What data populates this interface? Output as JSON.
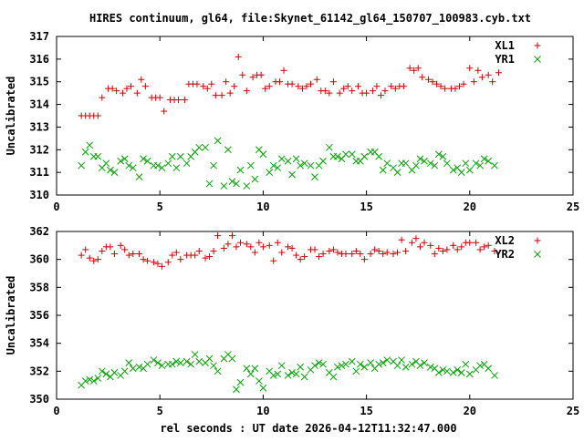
{
  "title": "HIRES continuum, gl64, file:Skynet_61142_gl64_150707_100983.cyb.txt",
  "xlabel": "rel seconds : UT date 2026-04-12T11:32:47.000",
  "chart_data": [
    {
      "type": "scatter",
      "ylabel": "Uncalibrated",
      "xlim": [
        0,
        25
      ],
      "ylim": [
        310,
        317
      ],
      "xticks": [
        0,
        5,
        10,
        15,
        20,
        25
      ],
      "yticks": [
        310,
        311,
        312,
        313,
        314,
        315,
        316,
        317
      ],
      "legend_position": "top-right",
      "series": [
        {
          "name": "XL1",
          "marker": "+",
          "color": "#cc0000",
          "x": [
            1.2,
            1.4,
            1.6,
            1.8,
            2.0,
            2.2,
            2.5,
            2.7,
            2.9,
            3.2,
            3.4,
            3.6,
            3.9,
            4.1,
            4.3,
            4.6,
            4.8,
            5.0,
            5.2,
            5.5,
            5.7,
            5.9,
            6.2,
            6.4,
            6.6,
            6.8,
            7.1,
            7.3,
            7.5,
            7.7,
            8.0,
            8.2,
            8.4,
            8.6,
            8.8,
            9.0,
            9.2,
            9.5,
            9.7,
            9.9,
            10.1,
            10.3,
            10.6,
            10.8,
            11.0,
            11.2,
            11.4,
            11.7,
            11.9,
            12.1,
            12.3,
            12.6,
            12.8,
            13.0,
            13.2,
            13.4,
            13.7,
            13.9,
            14.1,
            14.3,
            14.6,
            14.8,
            15.0,
            15.3,
            15.5,
            15.7,
            15.9,
            16.2,
            16.4,
            16.6,
            16.8,
            17.1,
            17.3,
            17.5,
            17.7,
            18.0,
            18.2,
            18.4,
            18.6,
            18.8,
            19.1,
            19.3,
            19.5,
            19.7,
            20.0,
            20.2,
            20.4,
            20.6,
            20.9,
            21.1,
            21.4
          ],
          "y": [
            313.5,
            313.5,
            313.5,
            313.5,
            313.5,
            314.3,
            314.7,
            314.7,
            314.6,
            314.5,
            314.7,
            314.8,
            314.5,
            315.1,
            314.8,
            314.3,
            314.3,
            314.3,
            313.7,
            314.2,
            314.2,
            314.2,
            314.2,
            314.9,
            314.9,
            314.9,
            314.8,
            314.7,
            314.9,
            314.4,
            314.4,
            315.0,
            314.5,
            314.8,
            316.1,
            315.3,
            314.6,
            315.2,
            315.3,
            315.3,
            314.7,
            314.8,
            315.0,
            315.0,
            315.5,
            314.9,
            314.9,
            314.8,
            314.7,
            314.8,
            314.9,
            315.1,
            314.6,
            314.6,
            314.5,
            315.0,
            314.5,
            314.7,
            314.8,
            314.6,
            314.8,
            314.5,
            314.5,
            314.6,
            314.8,
            314.4,
            314.6,
            314.8,
            314.7,
            314.8,
            314.8,
            315.6,
            315.5,
            315.6,
            315.2,
            315.1,
            315.0,
            314.9,
            314.8,
            314.7,
            314.7,
            314.7,
            314.8,
            314.9,
            315.6,
            315.0,
            315.5,
            315.2,
            315.3,
            315.0,
            315.4
          ],
          "x_draw": [
            1.2,
            1.4,
            1.6,
            1.8,
            2.0,
            2.2,
            2.4,
            2.6,
            2.8,
            3.1,
            3.3,
            3.5,
            3.7,
            4.0,
            4.2,
            4.4,
            4.7,
            4.9,
            5.1,
            5.4,
            5.6,
            5.8,
            6.0,
            6.3,
            6.5,
            6.7,
            6.9,
            7.2,
            7.4,
            7.6,
            7.8,
            8.1,
            8.3,
            8.5,
            8.7,
            8.9,
            9.2,
            9.4,
            9.6,
            9.8,
            10.0,
            10.3,
            10.5,
            10.7,
            10.9,
            11.2,
            11.4,
            11.6,
            11.8,
            12.0,
            12.3,
            12.5,
            12.7,
            12.9,
            13.2,
            13.4,
            13.6,
            13.8,
            14.0,
            14.3,
            14.5,
            14.7,
            14.9,
            15.2,
            15.4,
            15.6,
            15.8,
            16.0,
            16.3,
            16.5,
            16.7,
            16.9,
            17.2,
            17.4,
            17.6,
            17.8,
            18.1,
            18.3,
            18.5,
            18.7,
            18.9,
            19.2,
            19.4,
            19.6,
            19.8,
            20.0,
            20.3,
            20.5,
            20.7,
            20.9,
            21.2,
            21.4
          ],
          "y_draw": [
            313.5,
            313.5,
            313.5,
            313.5,
            313.5,
            314.3,
            314.7,
            314.6,
            314.5,
            314.7,
            314.8,
            314.5,
            315.1,
            314.8,
            314.3,
            314.3,
            314.3,
            313.7,
            314.2,
            314.2,
            314.2,
            314.2,
            314.9,
            314.9,
            314.8,
            314.7,
            314.9,
            314.4,
            314.4,
            315.0,
            314.5,
            314.8,
            316.1,
            315.3,
            314.6,
            315.2,
            315.3,
            315.3,
            314.7,
            314.8,
            315.0,
            315.0,
            315.5,
            314.9,
            314.9,
            314.8,
            314.7,
            314.8,
            314.9,
            315.1,
            314.6,
            314.6,
            314.5,
            315.0,
            314.5,
            314.7,
            314.8,
            314.6,
            314.8,
            314.5,
            314.5,
            314.6,
            314.8,
            314.4,
            314.6,
            314.8,
            314.7,
            314.8,
            314.8,
            315.6,
            315.5,
            315.6,
            315.2,
            315.1,
            315.0,
            314.9,
            314.8,
            314.7,
            314.7,
            314.7,
            314.8,
            314.9,
            315.6,
            315.0,
            315.5,
            315.2,
            315.3,
            315.0,
            315.4,
            315.4,
            315.4,
            315.4
          ]
        },
        {
          "name": "YR1",
          "marker": "x",
          "color": "#00a000",
          "x": [
            1.2,
            1.4,
            1.6,
            1.8,
            2.0,
            2.2,
            2.4,
            2.6,
            2.8,
            3.1,
            3.3,
            3.5,
            3.7,
            4.0,
            4.2,
            4.4,
            4.7,
            4.9,
            5.1,
            5.4,
            5.6,
            5.8,
            6.0,
            6.3,
            6.5,
            6.7,
            6.9,
            7.2,
            7.4,
            7.6,
            7.8,
            8.1,
            8.3,
            8.5,
            8.7,
            8.9,
            9.2,
            9.4,
            9.6,
            9.8,
            10.0,
            10.3,
            10.5,
            10.7,
            10.9,
            11.2,
            11.4,
            11.6,
            11.8,
            12.0,
            12.3,
            12.5,
            12.7,
            12.9,
            13.2,
            13.4,
            13.6,
            13.8,
            14.0,
            14.3,
            14.5,
            14.7,
            14.9,
            15.2,
            15.4,
            15.6,
            15.8,
            16.0,
            16.3,
            16.5,
            16.7,
            16.9,
            17.2,
            17.4,
            17.6,
            17.8,
            18.1,
            18.3,
            18.5,
            18.7,
            18.9,
            19.2,
            19.4,
            19.6,
            19.8,
            20.0,
            20.3,
            20.5,
            20.7,
            20.9,
            21.2
          ],
          "y": [
            311.3,
            311.9,
            312.2,
            311.7,
            311.7,
            311.2,
            311.4,
            311.1,
            311.0,
            311.5,
            311.6,
            311.3,
            311.2,
            310.8,
            311.6,
            311.5,
            311.3,
            311.3,
            311.2,
            311.4,
            311.7,
            311.2,
            311.7,
            311.4,
            311.7,
            311.9,
            312.1,
            312.1,
            310.5,
            311.3,
            312.4,
            310.4,
            312.0,
            310.6,
            310.5,
            311.1,
            310.4,
            311.3,
            310.7,
            312.0,
            311.8,
            311.0,
            311.3,
            311.2,
            311.6,
            311.5,
            310.9,
            311.6,
            311.3,
            311.4,
            311.3,
            310.8,
            311.3,
            311.5,
            312.1,
            311.7,
            311.7,
            311.6,
            311.8,
            311.8,
            311.5,
            311.5,
            311.7,
            311.9,
            311.9,
            311.7,
            311.1,
            311.4,
            311.2,
            311.0,
            311.4,
            311.4,
            311.1,
            311.3,
            311.6,
            311.5,
            311.4,
            311.3,
            311.8,
            311.7,
            311.4,
            311.1,
            311.2,
            311.0,
            311.4,
            311.1,
            311.4,
            311.3,
            311.6,
            311.5,
            311.3
          ]
        }
      ]
    },
    {
      "type": "scatter",
      "ylabel": "Uncalibrated",
      "xlim": [
        0,
        25
      ],
      "ylim": [
        350,
        362
      ],
      "xticks": [
        0,
        5,
        10,
        15,
        20,
        25
      ],
      "yticks": [
        350,
        352,
        354,
        356,
        358,
        360,
        362
      ],
      "legend_position": "top-right",
      "series": [
        {
          "name": "XL2",
          "marker": "+",
          "color": "#cc0000",
          "x": [
            1.2,
            1.4,
            1.6,
            1.8,
            2.0,
            2.2,
            2.4,
            2.6,
            2.8,
            3.1,
            3.3,
            3.5,
            3.7,
            4.0,
            4.2,
            4.4,
            4.7,
            4.9,
            5.1,
            5.4,
            5.6,
            5.8,
            6.0,
            6.3,
            6.5,
            6.7,
            6.9,
            7.2,
            7.4,
            7.6,
            7.8,
            8.1,
            8.3,
            8.5,
            8.7,
            8.9,
            9.2,
            9.4,
            9.6,
            9.8,
            10.0,
            10.3,
            10.5,
            10.7,
            10.9,
            11.2,
            11.4,
            11.6,
            11.8,
            12.0,
            12.3,
            12.5,
            12.7,
            12.9,
            13.2,
            13.4,
            13.6,
            13.8,
            14.0,
            14.3,
            14.5,
            14.7,
            14.9,
            15.2,
            15.4,
            15.6,
            15.8,
            16.0,
            16.3,
            16.5,
            16.7,
            16.9,
            17.2,
            17.4,
            17.6,
            17.8,
            18.1,
            18.3,
            18.5,
            18.7,
            18.9,
            19.2,
            19.4,
            19.6,
            19.8,
            20.0,
            20.3,
            20.5,
            20.7,
            20.9,
            21.2
          ],
          "y": [
            360.3,
            360.7,
            360.1,
            359.9,
            360.0,
            360.6,
            360.9,
            360.9,
            360.4,
            361.0,
            360.7,
            360.3,
            360.4,
            360.4,
            360.0,
            359.9,
            359.8,
            359.7,
            359.5,
            359.8,
            360.3,
            360.5,
            360.0,
            360.3,
            360.3,
            360.3,
            360.6,
            360.1,
            360.2,
            360.6,
            361.7,
            360.8,
            361.1,
            361.7,
            360.9,
            361.2,
            361.1,
            360.9,
            360.5,
            361.2,
            360.9,
            361.0,
            359.9,
            361.2,
            360.5,
            360.9,
            360.8,
            360.3,
            360.0,
            360.2,
            360.7,
            360.7,
            360.2,
            360.4,
            360.6,
            360.7,
            360.5,
            360.4,
            360.4,
            360.4,
            360.6,
            360.4,
            360.0,
            360.4,
            360.7,
            360.6,
            360.4,
            360.5,
            360.4,
            360.5,
            361.4,
            360.6,
            361.2,
            361.5,
            360.9,
            361.2,
            361.0,
            360.4,
            360.8,
            360.6,
            360.7,
            361.0,
            360.7,
            360.9,
            361.2,
            361.2,
            361.2,
            360.7,
            360.9,
            361.0,
            360.6
          ]
        },
        {
          "name": "YR2",
          "marker": "x",
          "color": "#00a000",
          "x": [
            1.2,
            1.4,
            1.6,
            1.8,
            2.0,
            2.2,
            2.4,
            2.6,
            2.8,
            3.1,
            3.3,
            3.5,
            3.7,
            4.0,
            4.2,
            4.4,
            4.7,
            4.9,
            5.1,
            5.4,
            5.6,
            5.8,
            6.0,
            6.3,
            6.5,
            6.7,
            6.9,
            7.2,
            7.4,
            7.6,
            7.8,
            8.1,
            8.3,
            8.5,
            8.7,
            8.9,
            9.2,
            9.4,
            9.6,
            9.8,
            10.0,
            10.3,
            10.5,
            10.7,
            10.9,
            11.2,
            11.4,
            11.6,
            11.8,
            12.0,
            12.3,
            12.5,
            12.7,
            12.9,
            13.2,
            13.4,
            13.6,
            13.8,
            14.0,
            14.3,
            14.5,
            14.7,
            14.9,
            15.2,
            15.4,
            15.6,
            15.8,
            16.0,
            16.3,
            16.5,
            16.7,
            16.9,
            17.2,
            17.4,
            17.6,
            17.8,
            18.1,
            18.3,
            18.5,
            18.7,
            18.9,
            19.2,
            19.4,
            19.6,
            19.8,
            20.0,
            20.3,
            20.5,
            20.7,
            20.9,
            21.2
          ],
          "y": [
            351.0,
            351.3,
            351.4,
            351.3,
            351.5,
            352.0,
            351.8,
            351.6,
            351.9,
            351.7,
            352.0,
            352.6,
            352.2,
            352.3,
            352.2,
            352.5,
            352.8,
            352.6,
            352.4,
            352.5,
            352.5,
            352.7,
            352.6,
            352.7,
            352.5,
            353.2,
            352.7,
            352.6,
            352.9,
            352.4,
            352.0,
            352.9,
            353.2,
            352.9,
            350.7,
            351.2,
            352.2,
            351.8,
            352.2,
            351.3,
            350.8,
            352.0,
            351.7,
            351.8,
            352.4,
            351.7,
            351.9,
            351.8,
            352.3,
            351.6,
            352.1,
            352.4,
            352.6,
            352.5,
            351.9,
            351.6,
            352.3,
            352.4,
            352.5,
            352.7,
            352.0,
            352.5,
            352.3,
            352.6,
            352.2,
            352.5,
            352.6,
            352.8,
            352.7,
            352.4,
            352.8,
            352.3,
            352.5,
            352.7,
            352.4,
            352.6,
            352.3,
            352.2,
            351.9,
            352.1,
            352.0,
            351.9,
            352.1,
            351.9,
            352.5,
            351.8,
            352.1,
            352.4,
            352.5,
            352.2,
            351.7
          ]
        }
      ]
    }
  ]
}
